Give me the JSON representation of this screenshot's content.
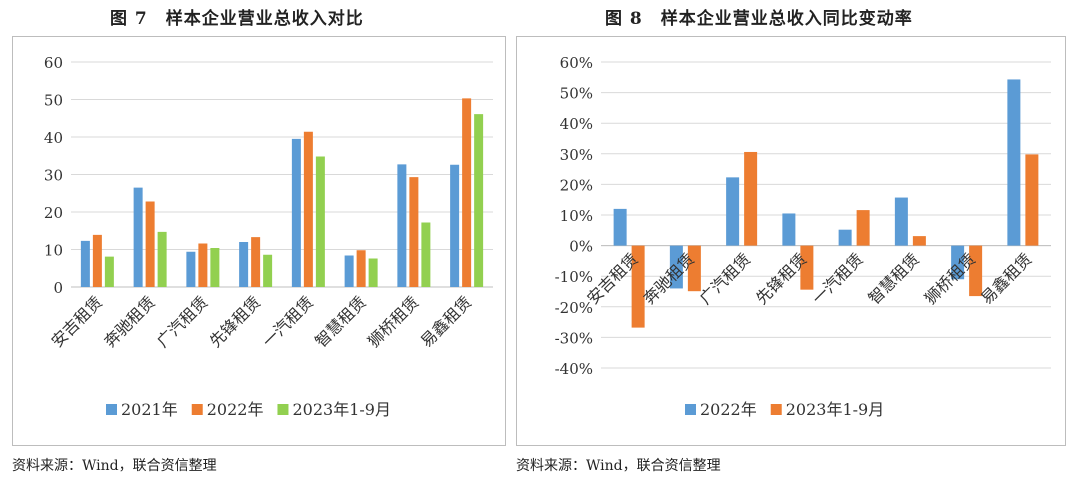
{
  "chart_data": [
    {
      "type": "bar",
      "title": "图 7　样本企业营业总收入对比",
      "categories": [
        "安吉租赁",
        "奔驰租赁",
        "广汽租赁",
        "先锋租赁",
        "一汽租赁",
        "智慧租赁",
        "狮桥租赁",
        "易鑫租赁"
      ],
      "series": [
        {
          "name": "2021年",
          "color": "#5b9bd5",
          "values": [
            12.3,
            26.5,
            9.4,
            12.0,
            39.5,
            8.4,
            32.7,
            32.6
          ]
        },
        {
          "name": "2022年",
          "color": "#ed7d31",
          "values": [
            13.9,
            22.8,
            11.6,
            13.3,
            41.4,
            9.8,
            29.3,
            50.3
          ]
        },
        {
          "name": "2023年1-9月",
          "color": "#92d050",
          "values": [
            8.1,
            14.7,
            10.4,
            8.6,
            34.8,
            7.6,
            17.2,
            46.1
          ]
        }
      ],
      "ylim": [
        0,
        60
      ],
      "yticks": [
        "0",
        "10",
        "20",
        "30",
        "40",
        "50",
        "60"
      ],
      "grid": true,
      "legend": "bottom",
      "source": "资料来源：Wind，联合资信整理"
    },
    {
      "type": "bar",
      "title": "图 8　样本企业营业总收入同比变动率",
      "categories": [
        "安吉租赁",
        "奔驰租赁",
        "广汽租赁",
        "先锋租赁",
        "一汽租赁",
        "智慧租赁",
        "狮桥租赁",
        "易鑫租赁"
      ],
      "series": [
        {
          "name": "2022年",
          "color": "#5b9bd5",
          "values": [
            12.0,
            -14.0,
            22.3,
            10.5,
            5.2,
            15.7,
            -11.0,
            54.3
          ]
        },
        {
          "name": "2023年1-9月",
          "color": "#ed7d31",
          "values": [
            -26.8,
            -14.9,
            30.6,
            -14.4,
            11.6,
            3.1,
            -16.5,
            29.8
          ]
        }
      ],
      "ylim": [
        -40,
        60
      ],
      "yticks": [
        "-40%",
        "-30%",
        "-20%",
        "-10%",
        "0%",
        "10%",
        "20%",
        "30%",
        "40%",
        "50%",
        "60%"
      ],
      "grid": true,
      "legend": "bottom",
      "source": "资料来源：Wind，联合资信整理"
    }
  ]
}
